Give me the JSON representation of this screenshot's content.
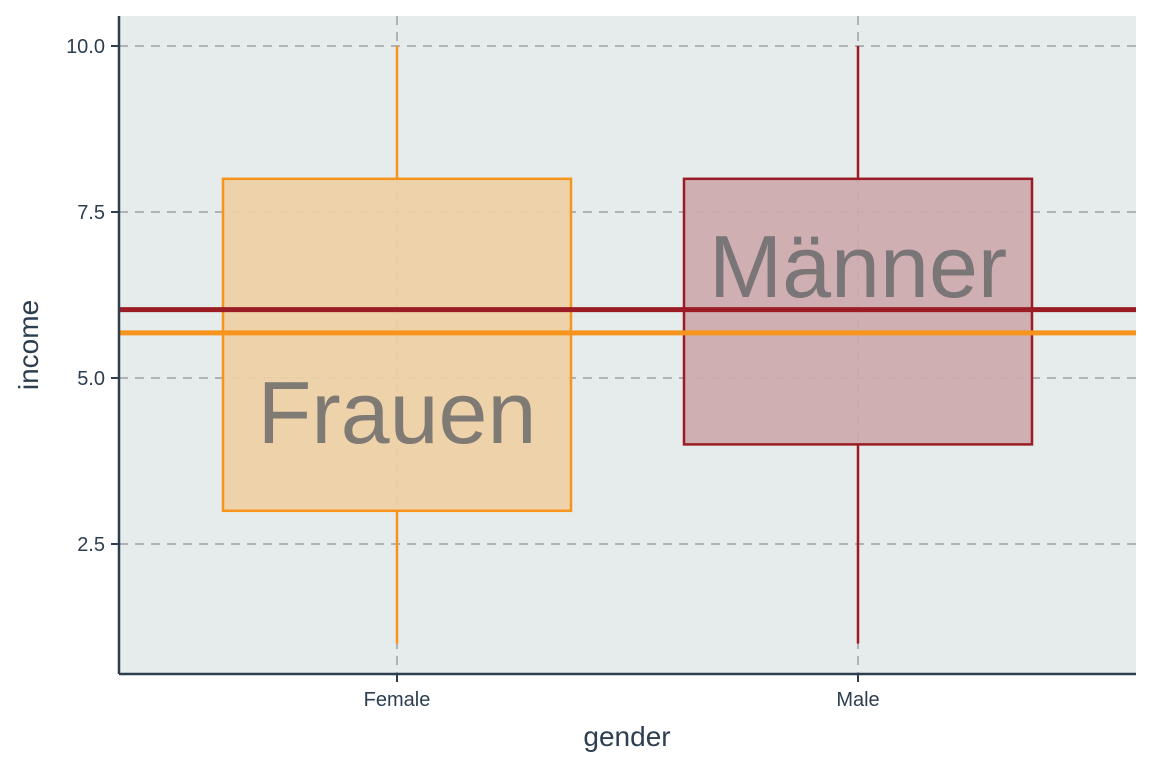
{
  "chart_data": {
    "type": "boxplot",
    "xlabel": "gender",
    "ylabel": "income",
    "categories": [
      "Female",
      "Male"
    ],
    "ylim": [
      0.6,
      10.5
    ],
    "yticks": [
      2.5,
      5.0,
      7.5,
      10.0
    ],
    "ytick_labels": [
      "2.5",
      "5.0",
      "7.5",
      "10.0"
    ],
    "grid": true,
    "boxes": [
      {
        "category": "Female",
        "min": 1,
        "q1": 3,
        "q3": 8,
        "max": 10,
        "color": "#f7941d",
        "fill": "#eecfa3",
        "label": "Frauen",
        "label_y": 4.5
      },
      {
        "category": "Male",
        "min": 1,
        "q1": 4,
        "q3": 8,
        "max": 10,
        "color": "#9b1c24",
        "fill": "#cca8ac",
        "label": "Männer",
        "label_y": 6.7
      }
    ],
    "hlines": [
      {
        "y": 6.03,
        "color": "#9b1c24"
      },
      {
        "y": 5.68,
        "color": "#f7941d"
      }
    ],
    "colors": {
      "panel_bg": "#e6ebeb",
      "grid": "#b0b3b5",
      "axis": "#2c3e50",
      "text": "#2c3e50"
    }
  }
}
